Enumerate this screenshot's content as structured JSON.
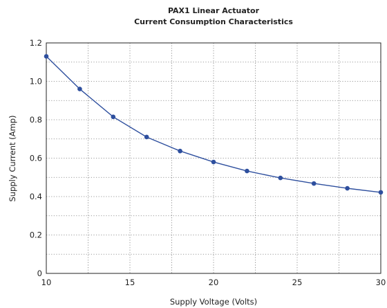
{
  "chart_data": {
    "type": "line",
    "title": "PAX1 Linear Actuator",
    "subtitle": "Current Consumption Characteristics",
    "xlabel": "Supply Voltage (Volts)",
    "ylabel": "Supply Current (Amp)",
    "xlim": [
      10,
      30
    ],
    "ylim": [
      0,
      1.2
    ],
    "x_ticks": [
      10,
      15,
      20,
      25,
      30
    ],
    "y_ticks": [
      0,
      0.2,
      0.4,
      0.6,
      0.8,
      1.0,
      1.2
    ],
    "x_tick_labels": [
      "10",
      "15",
      "20",
      "25",
      "30"
    ],
    "y_tick_labels": [
      "0",
      "0.2",
      "0.4",
      "0.6",
      "0.8",
      "1.0",
      "1.2"
    ],
    "grid": true,
    "series": [
      {
        "color": "#2e4f9e",
        "x": [
          10,
          12,
          14,
          16,
          18,
          20,
          22,
          24,
          26,
          28,
          30
        ],
        "y": [
          1.13,
          0.96,
          0.815,
          0.71,
          0.637,
          0.58,
          0.533,
          0.497,
          0.468,
          0.443,
          0.422
        ]
      }
    ]
  }
}
